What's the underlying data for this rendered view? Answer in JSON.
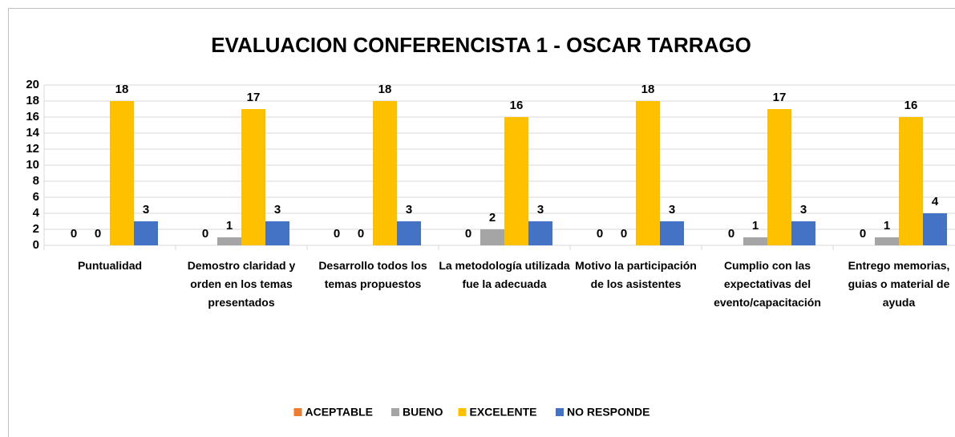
{
  "chart_data": {
    "type": "bar",
    "title": "EVALUACION CONFERENCISTA 1 - OSCAR TARRAGO",
    "categories": [
      "Puntualidad",
      "Demostro claridad y orden en los temas presentados",
      "Desarrollo todos los temas propuestos",
      "La metodología utilizada fue la adecuada",
      "Motivo la participación de los asistentes",
      "Cumplio con las expectativas del evento/capacitación",
      "Entrego memorias, guias o material de ayuda"
    ],
    "series": [
      {
        "name": "ACEPTABLE",
        "color": "#ed7d31",
        "values": [
          0,
          0,
          0,
          0,
          0,
          0,
          0
        ]
      },
      {
        "name": "BUENO",
        "color": "#a5a5a5",
        "values": [
          0,
          1,
          0,
          2,
          0,
          1,
          1
        ]
      },
      {
        "name": "EXCELENTE",
        "color": "#ffc000",
        "values": [
          18,
          17,
          18,
          16,
          18,
          17,
          16
        ]
      },
      {
        "name": "NO RESPONDE",
        "color": "#4472c4",
        "values": [
          3,
          3,
          3,
          3,
          3,
          3,
          4
        ]
      }
    ],
    "ylim": [
      0,
      20
    ],
    "yticks": [
      0,
      2,
      4,
      6,
      8,
      10,
      12,
      14,
      16,
      18,
      20
    ],
    "grid": true,
    "legend": "bottom"
  }
}
